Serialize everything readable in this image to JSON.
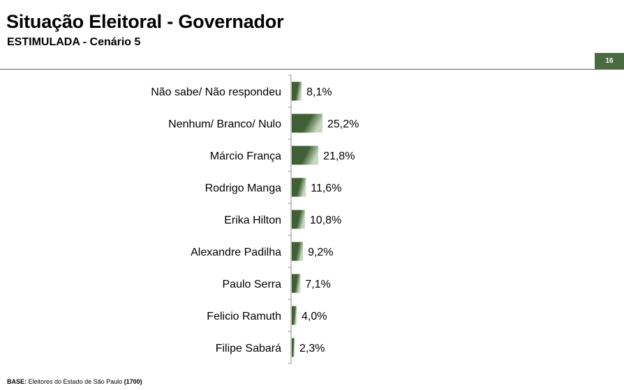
{
  "header": {
    "title": "Situação Eleitoral - Governador",
    "subtitle": "ESTIMULADA - Cenário 5",
    "page_number": "16"
  },
  "footer": {
    "base_label": "BASE:",
    "base_text": "Eleitores do Estado de São Paulo",
    "base_count": "(1700)"
  },
  "colors": {
    "accent": "#4a6b3f",
    "bar_dark": "#3f5f35",
    "bar_light": "#c9d9c1"
  },
  "chart_data": {
    "type": "bar",
    "orientation": "horizontal",
    "categories": [
      "Não sabe/ Não respondeu",
      "Nenhum/ Branco/ Nulo",
      "Márcio França",
      "Rodrigo Manga",
      "Erika Hilton",
      "Alexandre Padilha",
      "Paulo Serra",
      "Felicio Ramuth",
      "Filipe Sabará"
    ],
    "values": [
      8.1,
      25.2,
      21.8,
      11.6,
      10.8,
      9.2,
      7.1,
      4.0,
      2.3
    ],
    "labels": [
      "8,1%",
      "25,2%",
      "21,8%",
      "11,6%",
      "10,8%",
      "9,2%",
      "7,1%",
      "4,0%",
      "2,3%"
    ],
    "grid": false
  }
}
